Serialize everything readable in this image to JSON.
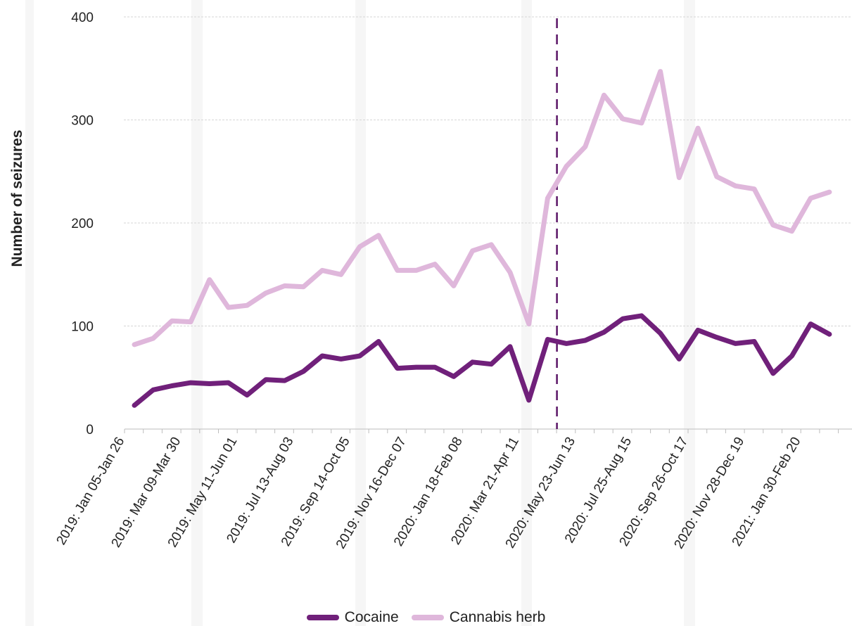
{
  "chart_data": {
    "type": "line",
    "ylabel": "Number of seizures",
    "xlabel": "",
    "title": "",
    "ylim": [
      0,
      400
    ],
    "yticks": [
      0,
      100,
      200,
      300,
      400
    ],
    "grid": true,
    "legend_position": "bottom-center",
    "x_tick_labels": [
      "2019: Jan 05-Jan 26",
      "2019: Mar 09-Mar 30",
      "2019: May 11-Jun 01",
      "2019: Jul 13-Aug 03",
      "2019: Sep 14-Oct 05",
      "2019: Nov 16-Dec 07",
      "2020: Jan 18-Feb 08",
      "2020: Mar 21-Apr 11",
      "2020: May 23-Jun 13",
      "2020: Jul 25-Aug 15",
      "2020: Sep 26-Oct 17",
      "2020: Nov 28-Dec 19",
      "2021: Jan 30-Feb 20"
    ],
    "marker_line_after_period": "2020: Mar 21-Apr 11",
    "series": [
      {
        "name": "Cocaine",
        "color": "#70207a",
        "values": [
          23,
          38,
          42,
          45,
          44,
          45,
          33,
          48,
          47,
          56,
          71,
          68,
          71,
          85,
          59,
          60,
          60,
          51,
          65,
          63,
          80,
          28,
          87,
          83,
          86,
          94,
          107,
          110,
          93,
          68,
          96,
          89,
          83,
          85,
          54,
          71,
          102,
          92
        ]
      },
      {
        "name": "Cannabis herb",
        "color": "#dfb7db",
        "values": [
          82,
          88,
          105,
          104,
          145,
          118,
          120,
          132,
          139,
          138,
          154,
          150,
          177,
          188,
          154,
          154,
          160,
          139,
          173,
          179,
          152,
          102,
          224,
          255,
          274,
          324,
          301,
          297,
          347,
          244,
          292,
          245,
          236,
          233,
          198,
          192,
          224,
          230
        ]
      }
    ]
  }
}
